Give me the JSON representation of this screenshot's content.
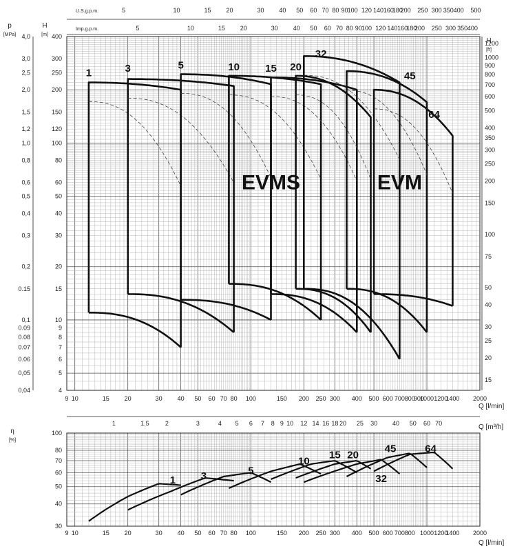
{
  "chart_data": [
    {
      "type": "line",
      "title": "",
      "xlabel": "Q [l/min]",
      "ylabel_left": "H [m]",
      "ylabel_left_outer": "p [MPa]",
      "ylabel_right": "H [ft]",
      "log_x": true,
      "log_y": true,
      "xlim": [
        9,
        2000
      ],
      "ylim": [
        4,
        400
      ],
      "x_ticks": [
        "9",
        "10",
        "15",
        "20",
        "30",
        "40",
        "50",
        "60",
        "70",
        "80",
        "100",
        "150",
        "200",
        "250",
        "300",
        "400",
        "500",
        "600",
        "700",
        "800",
        "900",
        "1000",
        "1200",
        "1400",
        "2000"
      ],
      "y_ticks_m": [
        "4",
        "5",
        "6",
        "7",
        "8",
        "9",
        "10",
        "15",
        "20",
        "30",
        "40",
        "50",
        "60",
        "80",
        "100",
        "120",
        "150",
        "200",
        "250",
        "300",
        "400"
      ],
      "y_ticks_mpa": [
        "4,0",
        "3,0",
        "2,5",
        "2,0",
        "1,5",
        "1,2",
        "1,0",
        "0,8",
        "0,6",
        "0,5",
        "0,4",
        "0,3",
        "0,2",
        "0.15",
        "0,1",
        "0.09",
        "0.08",
        "0.07",
        "0.06",
        "0,05",
        "0,04"
      ],
      "y_ticks_ft": [
        "1200",
        "1000",
        "900",
        "800",
        "700",
        "600",
        "500",
        "400",
        "350",
        "300",
        "250",
        "200",
        "150",
        "100",
        "75",
        "50",
        "40",
        "30",
        "25",
        "20",
        "15"
      ],
      "top_scale_usgpm": {
        "label": "U.S.g.p.m.",
        "ticks": [
          "5",
          "10",
          "15",
          "20",
          "30",
          "40",
          "50",
          "60",
          "70",
          "80",
          "90",
          "100",
          "120",
          "140",
          "160",
          "180",
          "200",
          "250",
          "300",
          "350",
          "400",
          "500"
        ]
      },
      "top_scale_impgpm": {
        "label": "Imp.g.p.m.",
        "ticks": [
          "5",
          "10",
          "15",
          "20",
          "30",
          "40",
          "50",
          "60",
          "70",
          "80",
          "90",
          "100",
          "120",
          "140",
          "160",
          "180",
          "200",
          "250",
          "300",
          "350",
          "400"
        ]
      },
      "region_labels": [
        "EVMS",
        "EVM"
      ],
      "series": [
        {
          "name": "1",
          "family": "EVMS",
          "qmin": 12,
          "qmax": 40,
          "hmax": 220,
          "hmin": 11,
          "h_top_end": 200,
          "h_bot_end": 7,
          "label_q": 12,
          "label_h": 250
        },
        {
          "name": "3",
          "family": "EVMS",
          "qmin": 20,
          "qmax": 80,
          "hmax": 230,
          "hmin": 14,
          "h_top_end": 210,
          "h_bot_end": 8.5,
          "label_q": 20,
          "label_h": 265
        },
        {
          "name": "5",
          "family": "EVMS",
          "qmin": 40,
          "qmax": 130,
          "hmax": 245,
          "hmin": 13,
          "h_top_end": 215,
          "h_bot_end": 10,
          "label_q": 40,
          "label_h": 275
        },
        {
          "name": "10",
          "family": "EVMS",
          "qmin": 75,
          "qmax": 250,
          "hmax": 240,
          "hmin": 16,
          "h_top_end": 215,
          "h_bot_end": 10,
          "label_q": 80,
          "label_h": 270
        },
        {
          "name": "15",
          "family": "EVMS",
          "qmin": 130,
          "qmax": 400,
          "hmax": 235,
          "hmin": 14,
          "h_top_end": 200,
          "h_bot_end": 8.5,
          "label_q": 130,
          "label_h": 265
        },
        {
          "name": "20",
          "family": "EVMS",
          "qmin": 180,
          "qmax": 480,
          "hmax": 240,
          "hmin": 15,
          "h_top_end": 140,
          "h_bot_end": 8.5,
          "label_q": 180,
          "label_h": 270
        },
        {
          "name": "32",
          "family": "EVM",
          "qmin": 200,
          "qmax": 700,
          "hmax": 310,
          "hmin": 15,
          "h_top_end": 220,
          "h_bot_end": 6,
          "label_q": 250,
          "label_h": 320
        },
        {
          "name": "45",
          "family": "EVM",
          "qmin": 350,
          "qmax": 1000,
          "hmax": 255,
          "hmin": 15,
          "h_top_end": 170,
          "h_bot_end": 8.5,
          "label_q": 800,
          "label_h": 240
        },
        {
          "name": "64",
          "family": "EVM",
          "qmin": 500,
          "qmax": 1400,
          "hmax": 200,
          "hmin": 14,
          "h_top_end": 110,
          "h_bot_end": 12,
          "label_q": 1100,
          "label_h": 145
        }
      ]
    },
    {
      "type": "line",
      "title": "",
      "xlabel": "Q [l/min]",
      "x2label": "Q [m³/h]",
      "ylabel": "η [%]",
      "log_x": true,
      "log_y": true,
      "xlim": [
        9,
        2000
      ],
      "ylim": [
        30,
        100
      ],
      "x_ticks": [
        "9",
        "10",
        "15",
        "20",
        "30",
        "40",
        "50",
        "60",
        "70",
        "80",
        "100",
        "150",
        "200",
        "250",
        "300",
        "400",
        "500",
        "600",
        "700",
        "800",
        "1000",
        "1200",
        "1400",
        "2000"
      ],
      "y_ticks": [
        "30",
        "40",
        "50",
        "60",
        "70",
        "80",
        "100"
      ],
      "x2_ticks": [
        "1",
        "1.5",
        "2",
        "3",
        "4",
        "5",
        "6",
        "7",
        "8",
        "9",
        "10",
        "12",
        "14",
        "16",
        "18",
        "20",
        "25",
        "30",
        "40",
        "50",
        "60",
        "70"
      ],
      "series": [
        {
          "name": "1",
          "q": [
            12,
            20,
            30,
            40
          ],
          "eta": [
            32,
            44,
            52,
            51
          ],
          "label_q": 36,
          "label_eta": 54
        },
        {
          "name": "3",
          "q": [
            20,
            35,
            55,
            80
          ],
          "eta": [
            37,
            47,
            56,
            54
          ],
          "label_q": 54,
          "label_eta": 57
        },
        {
          "name": "5",
          "q": [
            40,
            70,
            100,
            130
          ],
          "eta": [
            45,
            57,
            60,
            53
          ],
          "label_q": 100,
          "label_eta": 61
        },
        {
          "name": "10",
          "q": [
            75,
            130,
            190,
            250
          ],
          "eta": [
            49,
            61,
            67,
            59
          ],
          "label_q": 200,
          "label_eta": 69
        },
        {
          "name": "15",
          "q": [
            130,
            220,
            300,
            400
          ],
          "eta": [
            55,
            67,
            70,
            60
          ],
          "label_q": 300,
          "label_eta": 75
        },
        {
          "name": "20",
          "q": [
            180,
            300,
            400,
            480
          ],
          "eta": [
            56,
            67,
            70,
            63
          ],
          "label_q": 380,
          "label_eta": 75
        },
        {
          "name": "32",
          "q": [
            200,
            400,
            550,
            700
          ],
          "eta": [
            53,
            67,
            71,
            59
          ],
          "label_q": 550,
          "label_eta": 55
        },
        {
          "name": "45",
          "q": [
            350,
            600,
            800,
            1000
          ],
          "eta": [
            57,
            73,
            77,
            64
          ],
          "label_q": 620,
          "label_eta": 81
        },
        {
          "name": "64",
          "q": [
            500,
            800,
            1100,
            1400
          ],
          "eta": [
            61,
            76,
            78,
            63
          ],
          "label_q": 1050,
          "label_eta": 81
        }
      ]
    }
  ]
}
